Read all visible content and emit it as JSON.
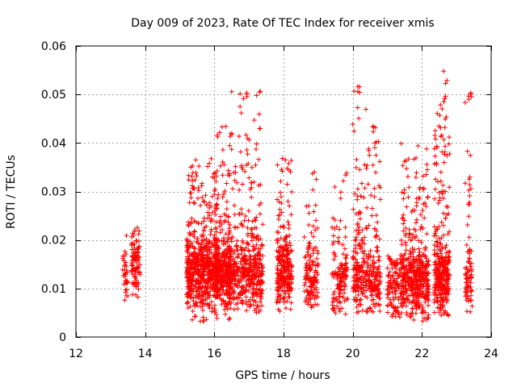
{
  "chart_data": {
    "type": "scatter",
    "title": "Day 009 of 2023, Rate Of TEC Index for receiver xmis",
    "xlabel": "GPS time / hours",
    "ylabel": "ROTI / TECUs",
    "xlim": [
      12,
      24
    ],
    "ylim": [
      0,
      0.06
    ],
    "xticks": [
      "12",
      "14",
      "16",
      "18",
      "20",
      "22",
      "24"
    ],
    "yticks": [
      "0",
      "0.01",
      "0.02",
      "0.03",
      "0.04",
      "0.05",
      "0.06"
    ],
    "grid": true,
    "marker": "+",
    "color": "#ff0000",
    "clusters": [
      {
        "x_range": [
          13.35,
          13.5
        ],
        "y_range": [
          0.007,
          0.023
        ],
        "y_center": 0.012,
        "count": 35
      },
      {
        "x_range": [
          13.6,
          13.85
        ],
        "y_range": [
          0.008,
          0.023
        ],
        "y_center": 0.014,
        "count": 90
      },
      {
        "x_range": [
          15.2,
          16.1
        ],
        "y_range": [
          0.003,
          0.037
        ],
        "y_center": 0.013,
        "count": 650
      },
      {
        "x_range": [
          16.0,
          16.5
        ],
        "y_range": [
          0.003,
          0.044
        ],
        "y_center": 0.013,
        "count": 350
      },
      {
        "x_range": [
          16.4,
          17.4
        ],
        "y_range": [
          0.005,
          0.051
        ],
        "y_center": 0.013,
        "count": 500
      },
      {
        "x_range": [
          17.8,
          18.25
        ],
        "y_range": [
          0.005,
          0.038
        ],
        "y_center": 0.013,
        "count": 260
      },
      {
        "x_range": [
          18.6,
          19.0
        ],
        "y_range": [
          0.006,
          0.035
        ],
        "y_center": 0.011,
        "count": 140
      },
      {
        "x_range": [
          19.4,
          19.85
        ],
        "y_range": [
          0.004,
          0.034
        ],
        "y_center": 0.011,
        "count": 140
      },
      {
        "x_range": [
          20.0,
          20.55
        ],
        "y_range": [
          0.005,
          0.052
        ],
        "y_center": 0.012,
        "count": 230
      },
      {
        "x_range": [
          20.55,
          20.8
        ],
        "y_range": [
          0.005,
          0.044
        ],
        "y_center": 0.012,
        "count": 120
      },
      {
        "x_range": [
          21.0,
          21.4
        ],
        "y_range": [
          0.004,
          0.017
        ],
        "y_center": 0.01,
        "count": 110
      },
      {
        "x_range": [
          21.4,
          22.2
        ],
        "y_range": [
          0.003,
          0.04
        ],
        "y_center": 0.011,
        "count": 470
      },
      {
        "x_range": [
          22.35,
          22.8
        ],
        "y_range": [
          0.004,
          0.056
        ],
        "y_center": 0.012,
        "count": 330
      },
      {
        "x_range": [
          23.25,
          23.45
        ],
        "y_range": [
          0.005,
          0.051
        ],
        "y_center": 0.011,
        "count": 90
      }
    ]
  }
}
